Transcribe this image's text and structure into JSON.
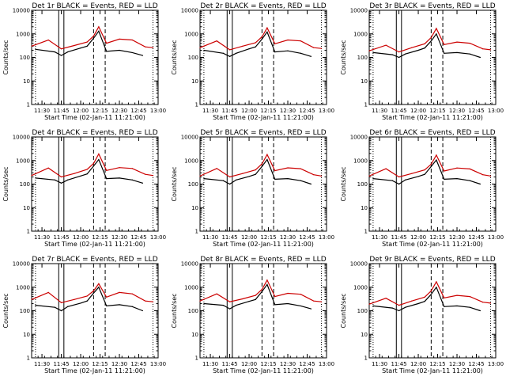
{
  "chart_data": [
    {
      "type": "line",
      "title": "Det 1r BLACK = Events, RED = LLD",
      "xlabel": "Start Time (02-Jan-11 11:21:00)",
      "ylabel": "Counts/sec",
      "yscale": "log",
      "ylim": [
        1,
        10000
      ],
      "xlim": [
        "11:22",
        "13:00"
      ],
      "x_ticks": [
        "11:30",
        "11:45",
        "12:00",
        "12:15",
        "12:30",
        "12:45",
        "13:00"
      ],
      "y_ticks": [
        "1",
        "10",
        "100",
        "1000",
        "10000"
      ],
      "solid_markers": [
        "11:43",
        "11:47"
      ],
      "dashed_markers": [
        "12:10",
        "12:19"
      ],
      "dotted_markers": [
        "11:25",
        "12:56"
      ],
      "series": [
        {
          "name": "Events",
          "color": "#000000",
          "x": [
            "11:25",
            "11:40",
            "11:45",
            "11:50",
            "12:00",
            "12:05",
            "12:10",
            "12:14",
            "12:20",
            "12:30",
            "12:40",
            "12:48"
          ],
          "values": [
            220,
            170,
            120,
            170,
            250,
            300,
            650,
            1300,
            180,
            200,
            160,
            120
          ]
        },
        {
          "name": "LLD",
          "color": "#cc0000",
          "x": [
            "11:22",
            "11:35",
            "11:45",
            "11:55",
            "12:05",
            "12:10",
            "12:14",
            "12:20",
            "12:30",
            "12:40",
            "12:50",
            "12:56"
          ],
          "values": [
            300,
            550,
            230,
            320,
            450,
            800,
            2000,
            400,
            600,
            550,
            280,
            260
          ]
        }
      ]
    },
    {
      "type": "line",
      "title": "Det 2r BLACK = Events, RED = LLD",
      "xlabel": "Start Time (02-Jan-11 11:21:00)",
      "ylabel": "Counts/sec",
      "yscale": "log",
      "ylim": [
        1,
        10000
      ],
      "xlim": [
        "11:22",
        "13:00"
      ],
      "x_ticks": [
        "11:30",
        "11:45",
        "12:00",
        "12:15",
        "12:30",
        "12:45",
        "13:00"
      ],
      "y_ticks": [
        "1",
        "10",
        "100",
        "1000",
        "10000"
      ],
      "solid_markers": [
        "11:43",
        "11:47"
      ],
      "dashed_markers": [
        "12:10",
        "12:19"
      ],
      "dotted_markers": [
        "11:25",
        "12:56"
      ],
      "series": [
        {
          "name": "Events",
          "color": "#000000",
          "x": [
            "11:25",
            "11:40",
            "11:45",
            "11:50",
            "12:00",
            "12:05",
            "12:10",
            "12:14",
            "12:20",
            "12:30",
            "12:40",
            "12:48"
          ],
          "values": [
            200,
            150,
            110,
            150,
            230,
            280,
            600,
            1200,
            170,
            190,
            150,
            110
          ]
        },
        {
          "name": "LLD",
          "color": "#cc0000",
          "x": [
            "11:22",
            "11:35",
            "11:45",
            "11:55",
            "12:05",
            "12:10",
            "12:14",
            "12:20",
            "12:30",
            "12:40",
            "12:50",
            "12:56"
          ],
          "values": [
            260,
            500,
            210,
            300,
            420,
            750,
            1800,
            380,
            550,
            500,
            260,
            240
          ]
        }
      ]
    },
    {
      "type": "line",
      "title": "Det 3r BLACK = Events, RED = LLD",
      "xlabel": "Start Time (02-Jan-11 11:21:00)",
      "ylabel": "Counts/sec",
      "yscale": "log",
      "ylim": [
        1,
        10000
      ],
      "xlim": [
        "11:22",
        "13:00"
      ],
      "x_ticks": [
        "11:30",
        "11:45",
        "12:00",
        "12:15",
        "12:30",
        "12:45",
        "13:00"
      ],
      "y_ticks": [
        "1",
        "10",
        "100",
        "1000",
        "10000"
      ],
      "solid_markers": [
        "11:43",
        "11:47"
      ],
      "dashed_markers": [
        "12:10",
        "12:19"
      ],
      "dotted_markers": [
        "11:25",
        "12:56"
      ],
      "series": [
        {
          "name": "Events",
          "color": "#000000",
          "x": [
            "11:25",
            "11:40",
            "11:45",
            "11:50",
            "12:00",
            "12:05",
            "12:10",
            "12:14",
            "12:20",
            "12:30",
            "12:40",
            "12:48"
          ],
          "values": [
            160,
            130,
            100,
            140,
            200,
            250,
            500,
            1000,
            150,
            160,
            140,
            100
          ]
        },
        {
          "name": "LLD",
          "color": "#cc0000",
          "x": [
            "11:22",
            "11:35",
            "11:45",
            "11:55",
            "12:05",
            "12:10",
            "12:14",
            "12:20",
            "12:30",
            "12:40",
            "12:50",
            "12:56"
          ],
          "values": [
            190,
            330,
            170,
            260,
            380,
            700,
            1700,
            350,
            450,
            400,
            230,
            210
          ]
        }
      ]
    },
    {
      "type": "line",
      "title": "Det 4r BLACK = Events, RED = LLD",
      "xlabel": "Start Time (02-Jan-11 11:21:00)",
      "ylabel": "Counts/sec",
      "yscale": "log",
      "ylim": [
        1,
        10000
      ],
      "xlim": [
        "11:22",
        "13:00"
      ],
      "x_ticks": [
        "11:30",
        "11:45",
        "12:00",
        "12:15",
        "12:30",
        "12:45",
        "13:00"
      ],
      "y_ticks": [
        "1",
        "10",
        "100",
        "1000",
        "10000"
      ],
      "solid_markers": [
        "11:43",
        "11:47"
      ],
      "dashed_markers": [
        "12:10",
        "12:19"
      ],
      "dotted_markers": [
        "11:25",
        "12:56"
      ],
      "series": [
        {
          "name": "Events",
          "color": "#000000",
          "x": [
            "11:25",
            "11:40",
            "11:45",
            "11:50",
            "12:00",
            "12:05",
            "12:10",
            "12:14",
            "12:20",
            "12:30",
            "12:40",
            "12:48"
          ],
          "values": [
            180,
            150,
            110,
            150,
            220,
            270,
            580,
            1100,
            170,
            180,
            150,
            110
          ]
        },
        {
          "name": "LLD",
          "color": "#cc0000",
          "x": [
            "11:22",
            "11:35",
            "11:45",
            "11:55",
            "12:05",
            "12:10",
            "12:14",
            "12:20",
            "12:30",
            "12:40",
            "12:50",
            "12:56"
          ],
          "values": [
            230,
            480,
            200,
            280,
            420,
            750,
            1900,
            380,
            500,
            460,
            260,
            230
          ]
        }
      ]
    },
    {
      "type": "line",
      "title": "Det 5r BLACK = Events, RED = LLD",
      "xlabel": "Start Time (02-Jan-11 11:21:00)",
      "ylabel": "Counts/sec",
      "yscale": "log",
      "ylim": [
        1,
        10000
      ],
      "xlim": [
        "11:22",
        "13:00"
      ],
      "x_ticks": [
        "11:30",
        "11:45",
        "12:00",
        "12:15",
        "12:30",
        "12:45",
        "13:00"
      ],
      "y_ticks": [
        "1",
        "10",
        "100",
        "1000",
        "10000"
      ],
      "solid_markers": [
        "11:43",
        "11:47"
      ],
      "dashed_markers": [
        "12:10",
        "12:19"
      ],
      "dotted_markers": [
        "11:25",
        "12:56"
      ],
      "series": [
        {
          "name": "Events",
          "color": "#000000",
          "x": [
            "11:25",
            "11:40",
            "11:45",
            "11:50",
            "12:00",
            "12:05",
            "12:10",
            "12:14",
            "12:20",
            "12:30",
            "12:40",
            "12:48"
          ],
          "values": [
            170,
            140,
            100,
            150,
            210,
            260,
            560,
            1100,
            160,
            170,
            140,
            100
          ]
        },
        {
          "name": "LLD",
          "color": "#cc0000",
          "x": [
            "11:22",
            "11:35",
            "11:45",
            "11:55",
            "12:05",
            "12:10",
            "12:14",
            "12:20",
            "12:30",
            "12:40",
            "12:50",
            "12:56"
          ],
          "values": [
            220,
            460,
            200,
            280,
            400,
            720,
            1800,
            370,
            490,
            450,
            250,
            220
          ]
        }
      ]
    },
    {
      "type": "line",
      "title": "Det 6r BLACK = Events, RED = LLD",
      "xlabel": "Start Time (02-Jan-11 11:21:00)",
      "ylabel": "Counts/sec",
      "yscale": "log",
      "ylim": [
        1,
        10000
      ],
      "xlim": [
        "11:22",
        "13:00"
      ],
      "x_ticks": [
        "11:30",
        "11:45",
        "12:00",
        "12:15",
        "12:30",
        "12:45",
        "13:00"
      ],
      "y_ticks": [
        "1",
        "10",
        "100",
        "1000",
        "10000"
      ],
      "solid_markers": [
        "11:43",
        "11:47"
      ],
      "dashed_markers": [
        "12:10",
        "12:19"
      ],
      "dotted_markers": [
        "11:25",
        "12:56"
      ],
      "series": [
        {
          "name": "Events",
          "color": "#000000",
          "x": [
            "11:25",
            "11:40",
            "11:45",
            "11:50",
            "12:00",
            "12:05",
            "12:10",
            "12:14",
            "12:20",
            "12:30",
            "12:40",
            "12:48"
          ],
          "values": [
            170,
            140,
            100,
            150,
            210,
            260,
            560,
            1050,
            160,
            170,
            140,
            100
          ]
        },
        {
          "name": "LLD",
          "color": "#cc0000",
          "x": [
            "11:22",
            "11:35",
            "11:45",
            "11:55",
            "12:05",
            "12:10",
            "12:14",
            "12:20",
            "12:30",
            "12:40",
            "12:50",
            "12:56"
          ],
          "values": [
            220,
            450,
            200,
            280,
            400,
            700,
            1700,
            360,
            480,
            440,
            250,
            220
          ]
        }
      ]
    },
    {
      "type": "line",
      "title": "Det 7r BLACK = Events, RED = LLD",
      "xlabel": "Start Time (02-Jan-11 11:21:00)",
      "ylabel": "Counts/sec",
      "yscale": "log",
      "ylim": [
        1,
        10000
      ],
      "xlim": [
        "11:22",
        "13:00"
      ],
      "x_ticks": [
        "11:30",
        "11:45",
        "12:00",
        "12:15",
        "12:30",
        "12:45",
        "13:00"
      ],
      "y_ticks": [
        "1",
        "10",
        "100",
        "1000",
        "10000"
      ],
      "solid_markers": [
        "11:43",
        "11:47"
      ],
      "dashed_markers": [
        "12:10",
        "12:19"
      ],
      "dotted_markers": [
        "11:25",
        "12:56"
      ],
      "series": [
        {
          "name": "Events",
          "color": "#000000",
          "x": [
            "11:25",
            "11:40",
            "11:45",
            "11:50",
            "12:00",
            "12:05",
            "12:10",
            "12:14",
            "12:20",
            "12:30",
            "12:40",
            "12:48"
          ],
          "values": [
            170,
            140,
            100,
            150,
            210,
            260,
            560,
            1000,
            160,
            180,
            150,
            100
          ]
        },
        {
          "name": "LLD",
          "color": "#cc0000",
          "x": [
            "11:22",
            "11:35",
            "11:45",
            "11:55",
            "12:05",
            "12:10",
            "12:14",
            "12:20",
            "12:30",
            "12:40",
            "12:50",
            "12:56"
          ],
          "values": [
            300,
            600,
            220,
            300,
            420,
            700,
            1400,
            380,
            600,
            520,
            260,
            240
          ]
        }
      ]
    },
    {
      "type": "line",
      "title": "Det 8r BLACK = Events, RED = LLD",
      "xlabel": "Start Time (02-Jan-11 11:21:00)",
      "ylabel": "Counts/sec",
      "yscale": "log",
      "ylim": [
        1,
        10000
      ],
      "xlim": [
        "11:22",
        "13:00"
      ],
      "x_ticks": [
        "11:30",
        "11:45",
        "12:00",
        "12:15",
        "12:30",
        "12:45",
        "13:00"
      ],
      "y_ticks": [
        "1",
        "10",
        "100",
        "1000",
        "10000"
      ],
      "solid_markers": [
        "11:43",
        "11:47"
      ],
      "dashed_markers": [
        "12:10",
        "12:19"
      ],
      "dotted_markers": [
        "11:25",
        "12:56"
      ],
      "series": [
        {
          "name": "Events",
          "color": "#000000",
          "x": [
            "11:25",
            "11:40",
            "11:45",
            "11:50",
            "12:00",
            "12:05",
            "12:10",
            "12:14",
            "12:20",
            "12:30",
            "12:40",
            "12:48"
          ],
          "values": [
            200,
            170,
            120,
            170,
            250,
            300,
            650,
            1300,
            180,
            200,
            160,
            120
          ]
        },
        {
          "name": "LLD",
          "color": "#cc0000",
          "x": [
            "11:22",
            "11:35",
            "11:45",
            "11:55",
            "12:05",
            "12:10",
            "12:14",
            "12:20",
            "12:30",
            "12:40",
            "12:50",
            "12:56"
          ],
          "values": [
            260,
            520,
            240,
            320,
            450,
            800,
            2000,
            400,
            550,
            500,
            260,
            240
          ]
        }
      ]
    },
    {
      "type": "line",
      "title": "Det 9r BLACK = Events, RED = LLD",
      "xlabel": "Start Time (02-Jan-11 11:21:00)",
      "ylabel": "Counts/sec",
      "yscale": "log",
      "ylim": [
        1,
        10000
      ],
      "xlim": [
        "11:22",
        "13:00"
      ],
      "x_ticks": [
        "11:30",
        "11:45",
        "12:00",
        "12:15",
        "12:30",
        "12:45",
        "13:00"
      ],
      "y_ticks": [
        "1",
        "10",
        "100",
        "1000",
        "10000"
      ],
      "solid_markers": [
        "11:43",
        "11:47"
      ],
      "dashed_markers": [
        "12:10",
        "12:19"
      ],
      "dotted_markers": [
        "11:25",
        "12:56"
      ],
      "series": [
        {
          "name": "Events",
          "color": "#000000",
          "x": [
            "11:25",
            "11:40",
            "11:45",
            "11:50",
            "12:00",
            "12:05",
            "12:10",
            "12:14",
            "12:20",
            "12:30",
            "12:40",
            "12:48"
          ],
          "values": [
            160,
            130,
            100,
            140,
            200,
            250,
            500,
            1000,
            150,
            160,
            140,
            100
          ]
        },
        {
          "name": "LLD",
          "color": "#cc0000",
          "x": [
            "11:22",
            "11:35",
            "11:45",
            "11:55",
            "12:05",
            "12:10",
            "12:14",
            "12:20",
            "12:30",
            "12:40",
            "12:50",
            "12:56"
          ],
          "values": [
            190,
            340,
            170,
            260,
            380,
            700,
            1700,
            350,
            450,
            400,
            230,
            210
          ]
        }
      ]
    }
  ]
}
